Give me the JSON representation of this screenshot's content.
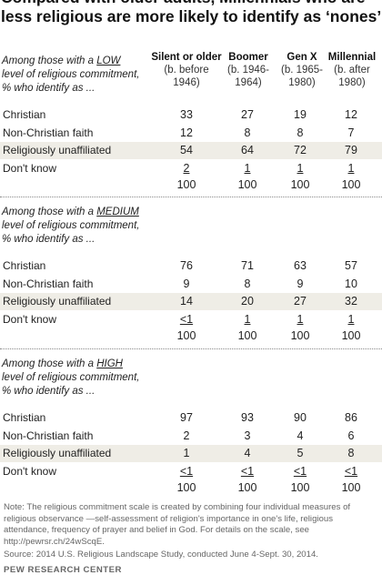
{
  "title": "Compared with older adults, Millennials who are less religious are more likely to identify as ‘nones’",
  "columns": [
    {
      "name": "Silent or older",
      "sub1": "(b. before",
      "sub2": "1946)"
    },
    {
      "name": "Boomer",
      "sub1": "(b. 1946-",
      "sub2": "1964)"
    },
    {
      "name": "Gen X",
      "sub1": "(b. 1965-",
      "sub2": "1980)"
    },
    {
      "name": "Millennial",
      "sub1": "(b. after",
      "sub2": "1980)"
    }
  ],
  "sections": [
    {
      "intro_pre": "Among those with a ",
      "level": "LOW",
      "intro_post1": "level of religious commitment,",
      "intro_post2": "% who identify as ...",
      "rows": [
        {
          "label": "Christian",
          "values": [
            "33",
            "27",
            "19",
            "12"
          ]
        },
        {
          "label": "Non-Christian faith",
          "values": [
            "12",
            "8",
            "8",
            "7"
          ]
        },
        {
          "label": "Religiously unaffiliated",
          "values": [
            "54",
            "64",
            "72",
            "79"
          ]
        },
        {
          "label": "Don't know",
          "values": [
            "2",
            "1",
            "1",
            "1"
          ]
        }
      ],
      "totals": [
        "100",
        "100",
        "100",
        "100"
      ]
    },
    {
      "intro_pre": "Among those with a ",
      "level": "MEDIUM",
      "intro_post1": "level of religious commitment,",
      "intro_post2": "% who identify as ...",
      "rows": [
        {
          "label": "Christian",
          "values": [
            "76",
            "71",
            "63",
            "57"
          ]
        },
        {
          "label": "Non-Christian faith",
          "values": [
            "9",
            "8",
            "9",
            "10"
          ]
        },
        {
          "label": "Religiously unaffiliated",
          "values": [
            "14",
            "20",
            "27",
            "32"
          ]
        },
        {
          "label": "Don't know",
          "values": [
            "<1",
            "1",
            "1",
            "1"
          ]
        }
      ],
      "totals": [
        "100",
        "100",
        "100",
        "100"
      ]
    },
    {
      "intro_pre": "Among those with a ",
      "level": "HIGH",
      "intro_post1": "level of religious commitment,",
      "intro_post2": "% who identify as ...",
      "rows": [
        {
          "label": "Christian",
          "values": [
            "97",
            "93",
            "90",
            "86"
          ]
        },
        {
          "label": "Non-Christian faith",
          "values": [
            "2",
            "3",
            "4",
            "6"
          ]
        },
        {
          "label": "Religiously unaffiliated",
          "values": [
            "1",
            "4",
            "5",
            "8"
          ]
        },
        {
          "label": "Don't know",
          "values": [
            "<1",
            "<1",
            "<1",
            "<1"
          ]
        }
      ],
      "totals": [
        "100",
        "100",
        "100",
        "100"
      ]
    }
  ],
  "note": "Note: The religious commitment scale is created by combining four individual measures of religious observance —self-assessment of religion's importance in one's life, religious attendance, frequency of prayer and belief in God. For details on the scale, see http://pewrsr.ch/24wScqE.",
  "source": "Source: 2014 U.S. Religious Landscape Study, conducted June 4-Sept. 30, 2014.",
  "brand": "PEW RESEARCH CENTER",
  "chart_data": {
    "type": "table",
    "title": "Compared with older adults, Millennials who are less religious are more likely to identify as ‘nones’",
    "columns": [
      "Silent or older (b. before 1946)",
      "Boomer (b. 1946-1964)",
      "Gen X (b. 1965-1980)",
      "Millennial (b. after 1980)"
    ],
    "groups": [
      {
        "level": "LOW",
        "rows": {
          "Christian": [
            33,
            27,
            19,
            12
          ],
          "Non-Christian faith": [
            12,
            8,
            8,
            7
          ],
          "Religiously unaffiliated": [
            54,
            64,
            72,
            79
          ],
          "Don't know": [
            2,
            1,
            1,
            1
          ]
        },
        "total": [
          100,
          100,
          100,
          100
        ]
      },
      {
        "level": "MEDIUM",
        "rows": {
          "Christian": [
            76,
            71,
            63,
            57
          ],
          "Non-Christian faith": [
            9,
            8,
            9,
            10
          ],
          "Religiously unaffiliated": [
            14,
            20,
            27,
            32
          ],
          "Don't know": [
            "<1",
            1,
            1,
            1
          ]
        },
        "total": [
          100,
          100,
          100,
          100
        ]
      },
      {
        "level": "HIGH",
        "rows": {
          "Christian": [
            97,
            93,
            90,
            86
          ],
          "Non-Christian faith": [
            2,
            3,
            4,
            6
          ],
          "Religiously unaffiliated": [
            1,
            4,
            5,
            8
          ],
          "Don't know": [
            "<1",
            "<1",
            "<1",
            "<1"
          ]
        },
        "total": [
          100,
          100,
          100,
          100
        ]
      }
    ]
  }
}
